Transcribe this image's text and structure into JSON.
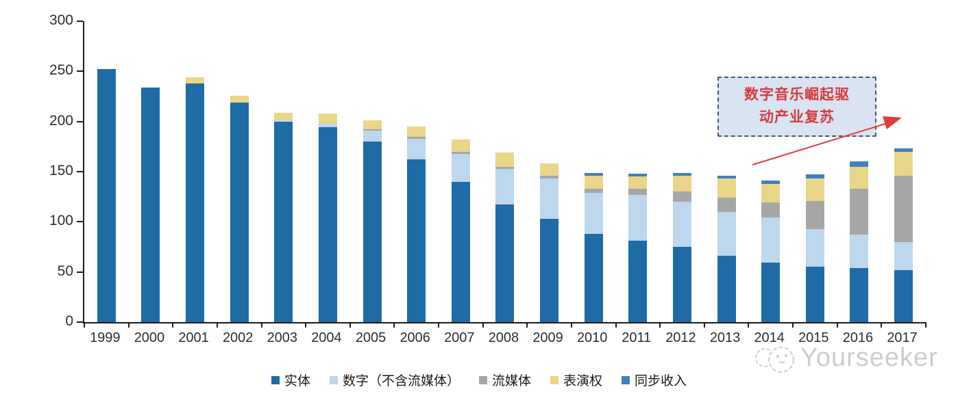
{
  "chart_data": {
    "type": "bar",
    "stacked": true,
    "title": "",
    "categories": [
      "1999",
      "2000",
      "2001",
      "2002",
      "2003",
      "2004",
      "2005",
      "2006",
      "2007",
      "2008",
      "2009",
      "2010",
      "2011",
      "2012",
      "2013",
      "2014",
      "2015",
      "2016",
      "2017"
    ],
    "series": [
      {
        "name": "实体",
        "color": "#1F6BA6",
        "values": [
          252,
          234,
          238,
          219,
          200,
          194,
          180,
          162,
          140,
          117,
          103,
          88,
          81,
          75,
          66,
          59,
          55,
          54,
          52
        ]
      },
      {
        "name": "数字（不含流媒体）",
        "color": "#BDD7EE",
        "values": [
          0,
          0,
          0,
          0,
          1,
          4,
          11,
          21,
          28,
          36,
          40,
          41,
          46,
          45,
          44,
          45,
          38,
          33,
          28
        ]
      },
      {
        "name": "流媒体",
        "color": "#A6A6A6",
        "values": [
          0,
          0,
          0,
          0,
          0,
          0,
          1,
          2,
          2,
          2,
          3,
          4,
          6,
          10,
          14,
          15,
          28,
          46,
          66
        ]
      },
      {
        "name": "表演权",
        "color": "#E9D689",
        "values": [
          0,
          0,
          6,
          7,
          8,
          10,
          9,
          10,
          12,
          14,
          12,
          13,
          12,
          16,
          19,
          19,
          22,
          22,
          24
        ]
      },
      {
        "name": "同步收入",
        "color": "#3E80C0",
        "values": [
          0,
          0,
          0,
          0,
          0,
          0,
          0,
          0,
          0,
          0,
          0,
          3,
          3,
          3,
          3,
          3,
          4,
          5,
          3
        ]
      }
    ],
    "totals": [
      252,
      234,
      244,
      226,
      209,
      208,
      201,
      195,
      182,
      169,
      158,
      149,
      148,
      149,
      146,
      141,
      147,
      160,
      173
    ],
    "ylim": [
      0,
      300
    ],
    "yticks": [
      0,
      50,
      100,
      150,
      200,
      250,
      300
    ],
    "grid": false,
    "legend_position": "bottom"
  },
  "axis": {
    "line_color": "#1a1a1a",
    "label_color": "#2d2d2d"
  },
  "annotation": {
    "line1": "数字音乐崛起驱",
    "line2": "动产业复苏",
    "text_color": "#D83A3E",
    "box_fill": "#D9E3F2",
    "box_border": "#44546A",
    "arrow_color": "#E5383B"
  },
  "watermark": {
    "text": "Yourseeker",
    "color": "#C7C7C7"
  }
}
